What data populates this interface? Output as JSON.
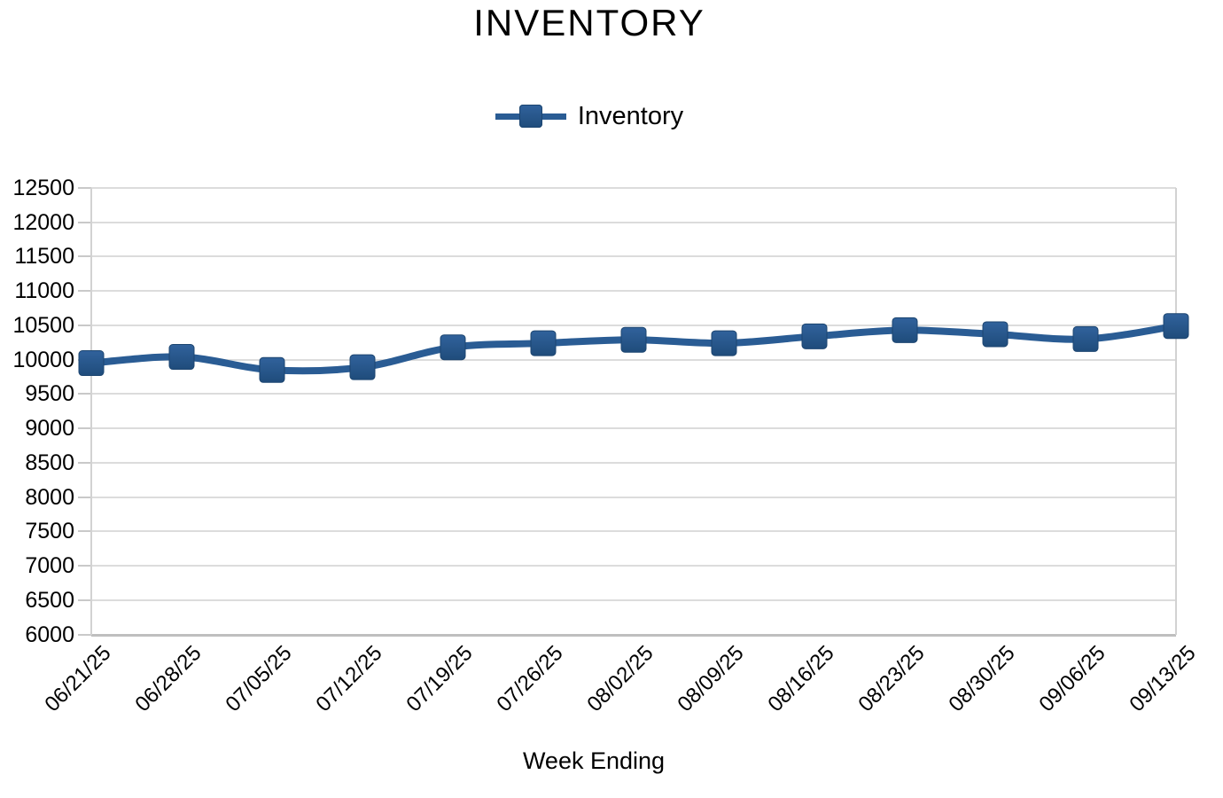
{
  "chart": {
    "title": "INVENTORY",
    "legend_label": "Inventory",
    "x_axis_title": "Week Ending"
  },
  "chart_data": {
    "type": "line",
    "title": "INVENTORY",
    "xlabel": "Week Ending",
    "ylabel": "",
    "legend": [
      "Inventory"
    ],
    "legend_position": "top-center",
    "grid": true,
    "categories": [
      "06/21/25",
      "06/28/25",
      "07/05/25",
      "07/12/25",
      "07/19/25",
      "07/26/25",
      "08/02/25",
      "08/09/25",
      "08/16/25",
      "08/23/25",
      "08/30/25",
      "09/06/25",
      "09/13/25"
    ],
    "series": [
      {
        "name": "Inventory",
        "values": [
          9950,
          10040,
          9850,
          9890,
          10180,
          10240,
          10290,
          10240,
          10340,
          10430,
          10370,
          10300,
          10490
        ]
      }
    ],
    "ylim": [
      6000,
      12500
    ],
    "ytick_step": 500,
    "ytick_labels": [
      "12500",
      "12000",
      "11500",
      "11000",
      "10500",
      "10000",
      "9500",
      "9000",
      "8500",
      "8000",
      "7500",
      "7000",
      "6500",
      "6000"
    ],
    "line_color": "#2A5C94",
    "marker": "rounded-square",
    "marker_color": "#2A5C94",
    "gridline_color": "#DCDCDC",
    "axis_line_color": "#BFBFBF",
    "curve": "smooth"
  }
}
